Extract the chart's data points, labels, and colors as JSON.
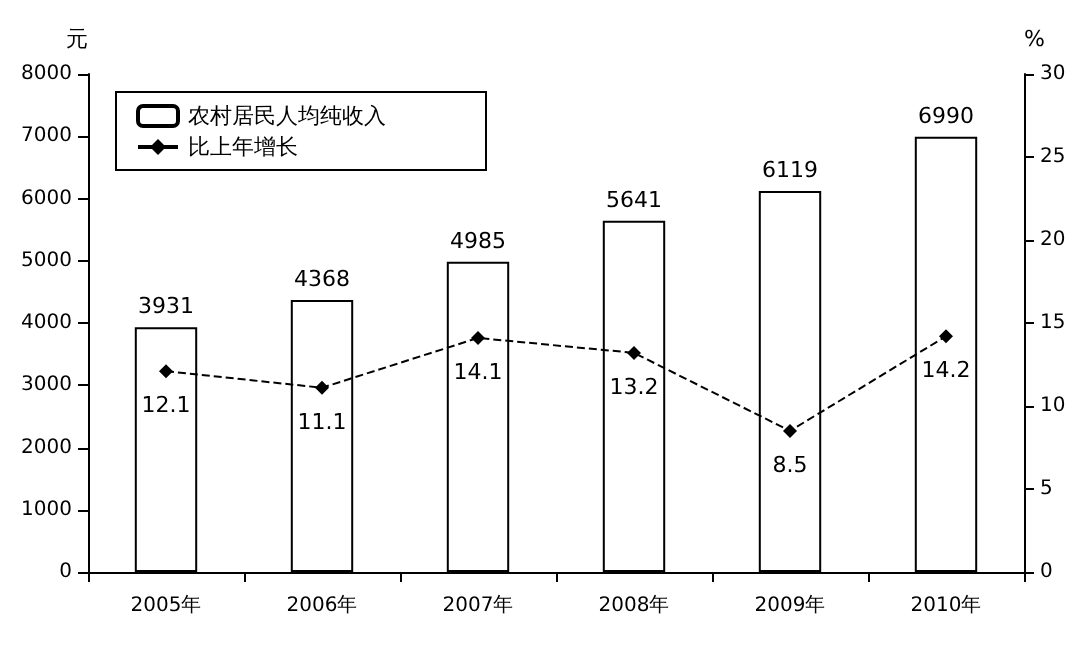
{
  "chart_data": {
    "type": "bar",
    "categories": [
      "2005年",
      "2006年",
      "2007年",
      "2008年",
      "2009年",
      "2010年"
    ],
    "ylabel": "元",
    "y2label": "%",
    "series": [
      {
        "name": "农村居民人均纯收入",
        "color": "#ffffff",
        "values": [
          3931,
          4368,
          4985,
          5641,
          6119,
          6990
        ]
      },
      {
        "name": "比上年增长",
        "type": "line",
        "axis": "y2",
        "color": "#000000",
        "marker": "diamond",
        "line_style": "dashed",
        "values": [
          12.1,
          11.1,
          14.1,
          13.2,
          8.5,
          14.2
        ]
      }
    ],
    "ylim": [
      0,
      8000
    ],
    "yticks": [
      0,
      1000,
      2000,
      3000,
      4000,
      5000,
      6000,
      7000,
      8000
    ],
    "y2lim": [
      0,
      30
    ],
    "y2ticks": [
      0,
      5,
      10,
      15,
      20,
      25,
      30
    ],
    "data_labels": true,
    "grid": false,
    "legend": "top left"
  }
}
